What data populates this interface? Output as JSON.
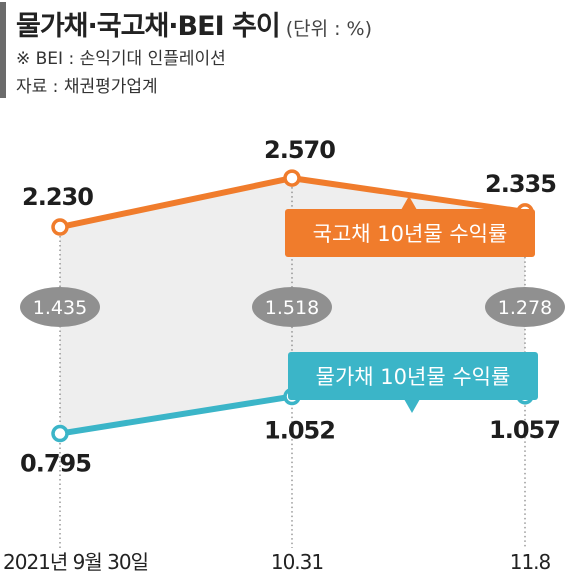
{
  "title": "물가채·국고채·BEI 추이",
  "unit": "(단위 : %)",
  "notes": [
    "※ BEI : 손익기대 인플레이션",
    "자료 : 채권평가업계"
  ],
  "colors": {
    "treasury": "#f07c2c",
    "inflation_linked": "#3bb5c8",
    "bei": "#909090",
    "band": "#eeeeee"
  },
  "chart_data": {
    "type": "line",
    "categories": [
      "2021년 9월 30일",
      "10.31",
      "11.8"
    ],
    "series": [
      {
        "name": "국고채 10년물 수익률",
        "values": [
          2.23,
          2.57,
          2.335
        ],
        "labels": [
          "2.230",
          "2.570",
          "2.335"
        ]
      },
      {
        "name": "물가채 10년물 수익률",
        "values": [
          0.795,
          1.052,
          1.057
        ],
        "labels": [
          "0.795",
          "1.052",
          "1.057"
        ]
      }
    ],
    "bei": {
      "values": [
        1.435,
        1.518,
        1.278
      ],
      "labels": [
        "1.435",
        "1.518",
        "1.278"
      ]
    },
    "title": "물가채·국고채·BEI 추이",
    "xlabel": "",
    "ylabel": "",
    "ylim": [
      0.5,
      2.8
    ]
  }
}
